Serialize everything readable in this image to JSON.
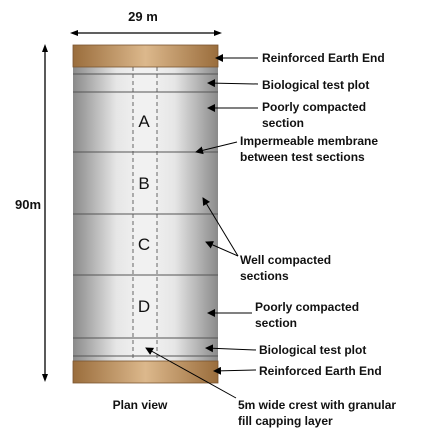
{
  "dimensions": {
    "width": "29 m",
    "height": "90m"
  },
  "sections": [
    "A",
    "B",
    "C",
    "D"
  ],
  "labels": {
    "reinforced_top": "Reinforced Earth End",
    "bio_top": "Biological test plot",
    "poor_top_1": "Poorly compacted",
    "poor_top_2": "section",
    "membrane_1": "Impermeable membrane",
    "membrane_2": "between test sections",
    "well_1": "Well compacted",
    "well_2": "sections",
    "poor_bot_1": "Poorly compacted",
    "poor_bot_2": "section",
    "bio_bot": "Biological test plot",
    "reinforced_bot": "Reinforced Earth End",
    "crest_1": "5m wide crest with granular",
    "crest_2": "fill capping layer"
  },
  "caption": "Plan view",
  "colors": {
    "end_cap": "#c4955f",
    "embankment_edge": "#8c8c8c",
    "embankment_center": "#f2f2f2"
  }
}
